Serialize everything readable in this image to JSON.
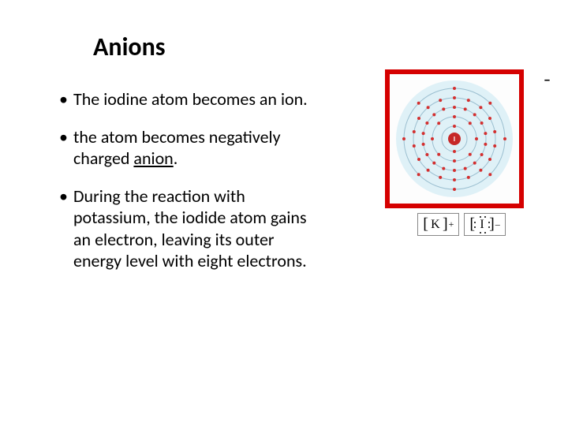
{
  "title": "Anions",
  "bullets": [
    {
      "pre": "The iodine atom becomes an ion.",
      "u": "",
      "post": ""
    },
    {
      "pre": "the atom becomes negatively  charged ",
      "u": "anion",
      "post": "."
    },
    {
      "pre": "During the reaction with potassium, the iodide atom gains an electron, leaving its outer energy level with eight electrons.",
      "u": "",
      "post": ""
    }
  ],
  "figure": {
    "box_border_color": "#d50000",
    "atom_bg": "#dff1f7",
    "nucleus_color": "#c62828",
    "nucleus_label": "I",
    "electron_color": "#d32f2f",
    "shell_color": "#9bbfd0",
    "minus": "–",
    "shells": [
      {
        "r": 16,
        "count": 2
      },
      {
        "r": 28,
        "count": 8
      },
      {
        "r": 40,
        "count": 18
      },
      {
        "r": 52,
        "count": 18
      },
      {
        "r": 64,
        "count": 8
      }
    ],
    "lewis": {
      "cation_letter": "K",
      "cation_charge": "+",
      "anion_letter": "I",
      "anion_charge": "–"
    }
  },
  "colors": {
    "text": "#000000",
    "background": "#ffffff"
  }
}
